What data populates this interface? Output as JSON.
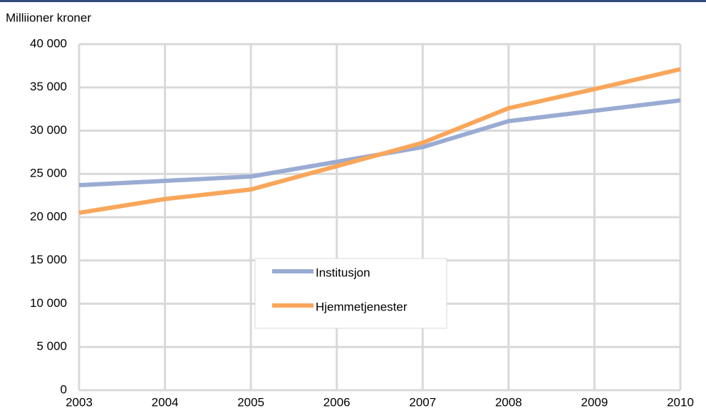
{
  "chart_data": {
    "type": "line",
    "y_label": "Milliioner kroner",
    "x": [
      2003,
      2004,
      2005,
      2006,
      2007,
      2008,
      2009,
      2010
    ],
    "xlim": [
      2003,
      2010
    ],
    "series": [
      {
        "name": "Institusjon",
        "color": "#9aabd3",
        "values": [
          23700,
          24200,
          24700,
          26400,
          28100,
          31100,
          32300,
          33500
        ]
      },
      {
        "name": "Hjemmetjenester",
        "color": "#f9a65a",
        "values": [
          20500,
          22100,
          23200,
          25900,
          28600,
          32600,
          34800,
          37100
        ]
      }
    ],
    "ylim": [
      0,
      40000
    ],
    "yticks": [
      0,
      {
        "value": 5000,
        "label": "5 000"
      },
      {
        "value": 10000,
        "label": "10 000"
      },
      {
        "value": 15000,
        "label": "15 000"
      },
      {
        "value": 20000,
        "label": "20 000"
      },
      {
        "value": 25000,
        "label": "25 000"
      },
      {
        "value": 30000,
        "label": "30 000"
      },
      {
        "value": 35000,
        "label": "35 000"
      },
      {
        "value": 40000,
        "label": "40 000"
      }
    ],
    "grid": true
  }
}
